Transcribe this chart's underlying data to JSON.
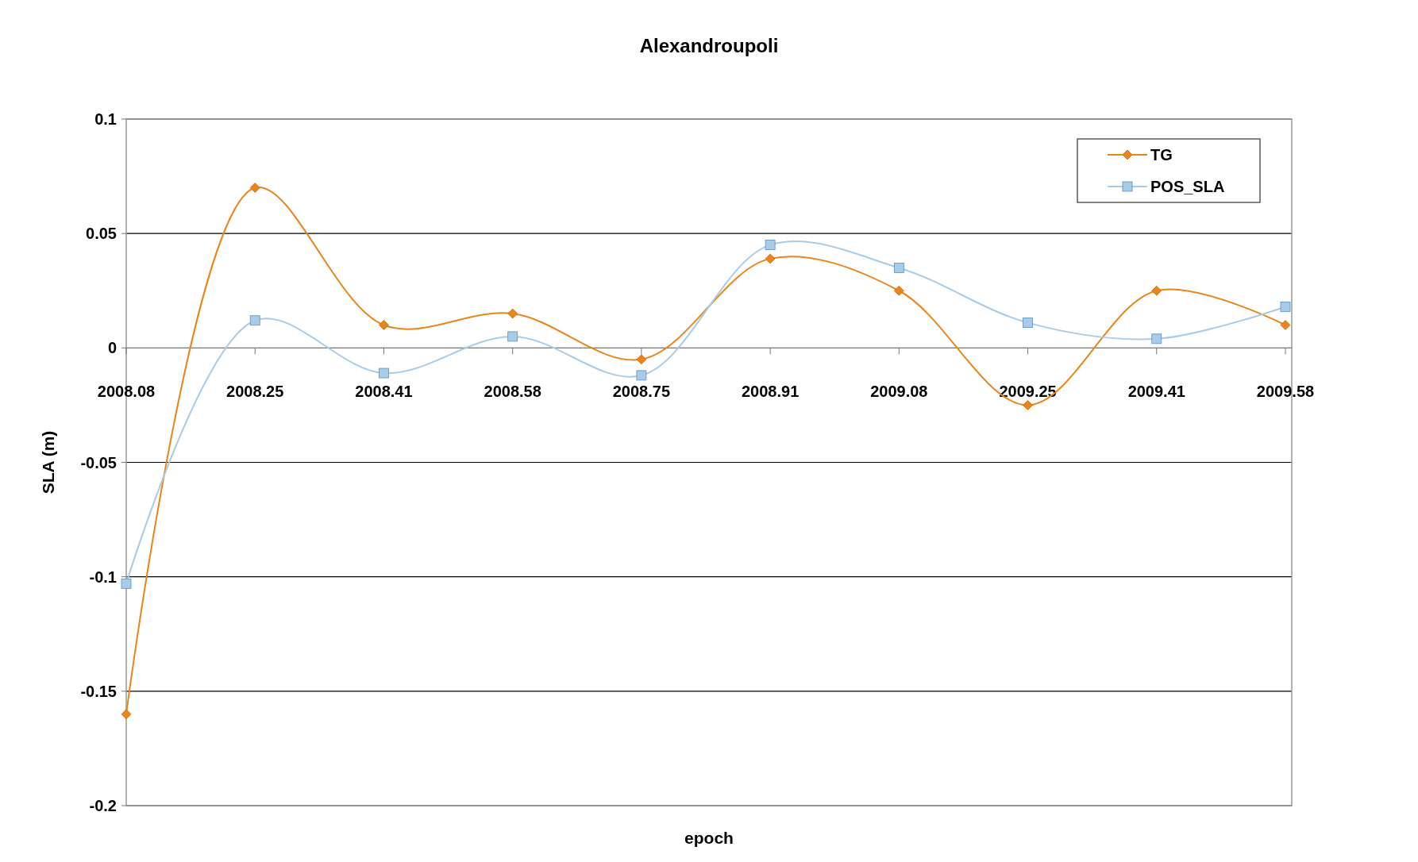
{
  "chart_data": {
    "type": "line",
    "title": "Alexandroupoli",
    "xlabel": "epoch",
    "ylabel": "SLA (m)",
    "categories": [
      "2008.08",
      "2008.25",
      "2008.41",
      "2008.58",
      "2008.75",
      "2008.91",
      "2009.08",
      "2009.25",
      "2009.41",
      "2009.58"
    ],
    "series": [
      {
        "name": "TG",
        "color": "#e8861a",
        "marker": "diamond",
        "values": [
          -0.16,
          0.07,
          0.01,
          0.015,
          -0.005,
          0.039,
          0.025,
          -0.025,
          0.025,
          0.01
        ]
      },
      {
        "name": "POS_SLA",
        "color": "#a8cbe8",
        "marker": "square",
        "values": [
          -0.103,
          0.012,
          -0.011,
          0.005,
          -0.012,
          0.045,
          0.035,
          0.011,
          0.004,
          0.018
        ]
      }
    ],
    "ylim": [
      -0.2,
      0.1
    ],
    "yticks": [
      -0.2,
      -0.15,
      -0.1,
      -0.05,
      0,
      0.05,
      0.1
    ],
    "grid": "y",
    "legend": "top right"
  }
}
